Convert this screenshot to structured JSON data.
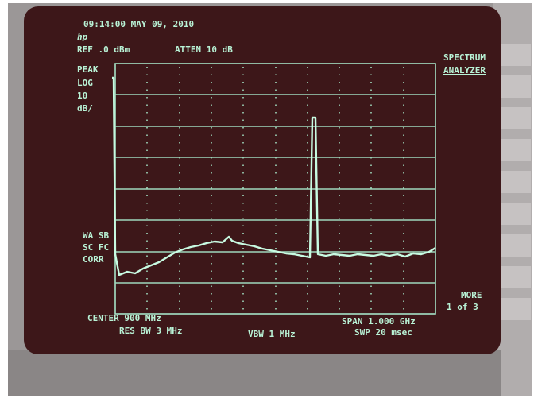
{
  "header": {
    "timestamp": "09:14:00 MAY 09, 2010",
    "logo": "hp",
    "reference": "REF .0 dBm",
    "attenuation": "ATTEN 10 dB"
  },
  "left_labels": [
    "PEAK",
    "LOG",
    "10",
    "dB/"
  ],
  "mode": [
    "SPECTRUM",
    "ANALYZER"
  ],
  "status_labels": [
    "WA SB",
    "SC FC",
    "CORR"
  ],
  "menu": [
    "MORE",
    "1 of 3"
  ],
  "footer": {
    "center": "CENTER 900 MHz",
    "span": "SPAN 1.000 GHz",
    "res_bw": "RES BW 3 MHz",
    "vbw": "VBW 1 MHz",
    "sweep": "SWP 20 msec"
  }
}
